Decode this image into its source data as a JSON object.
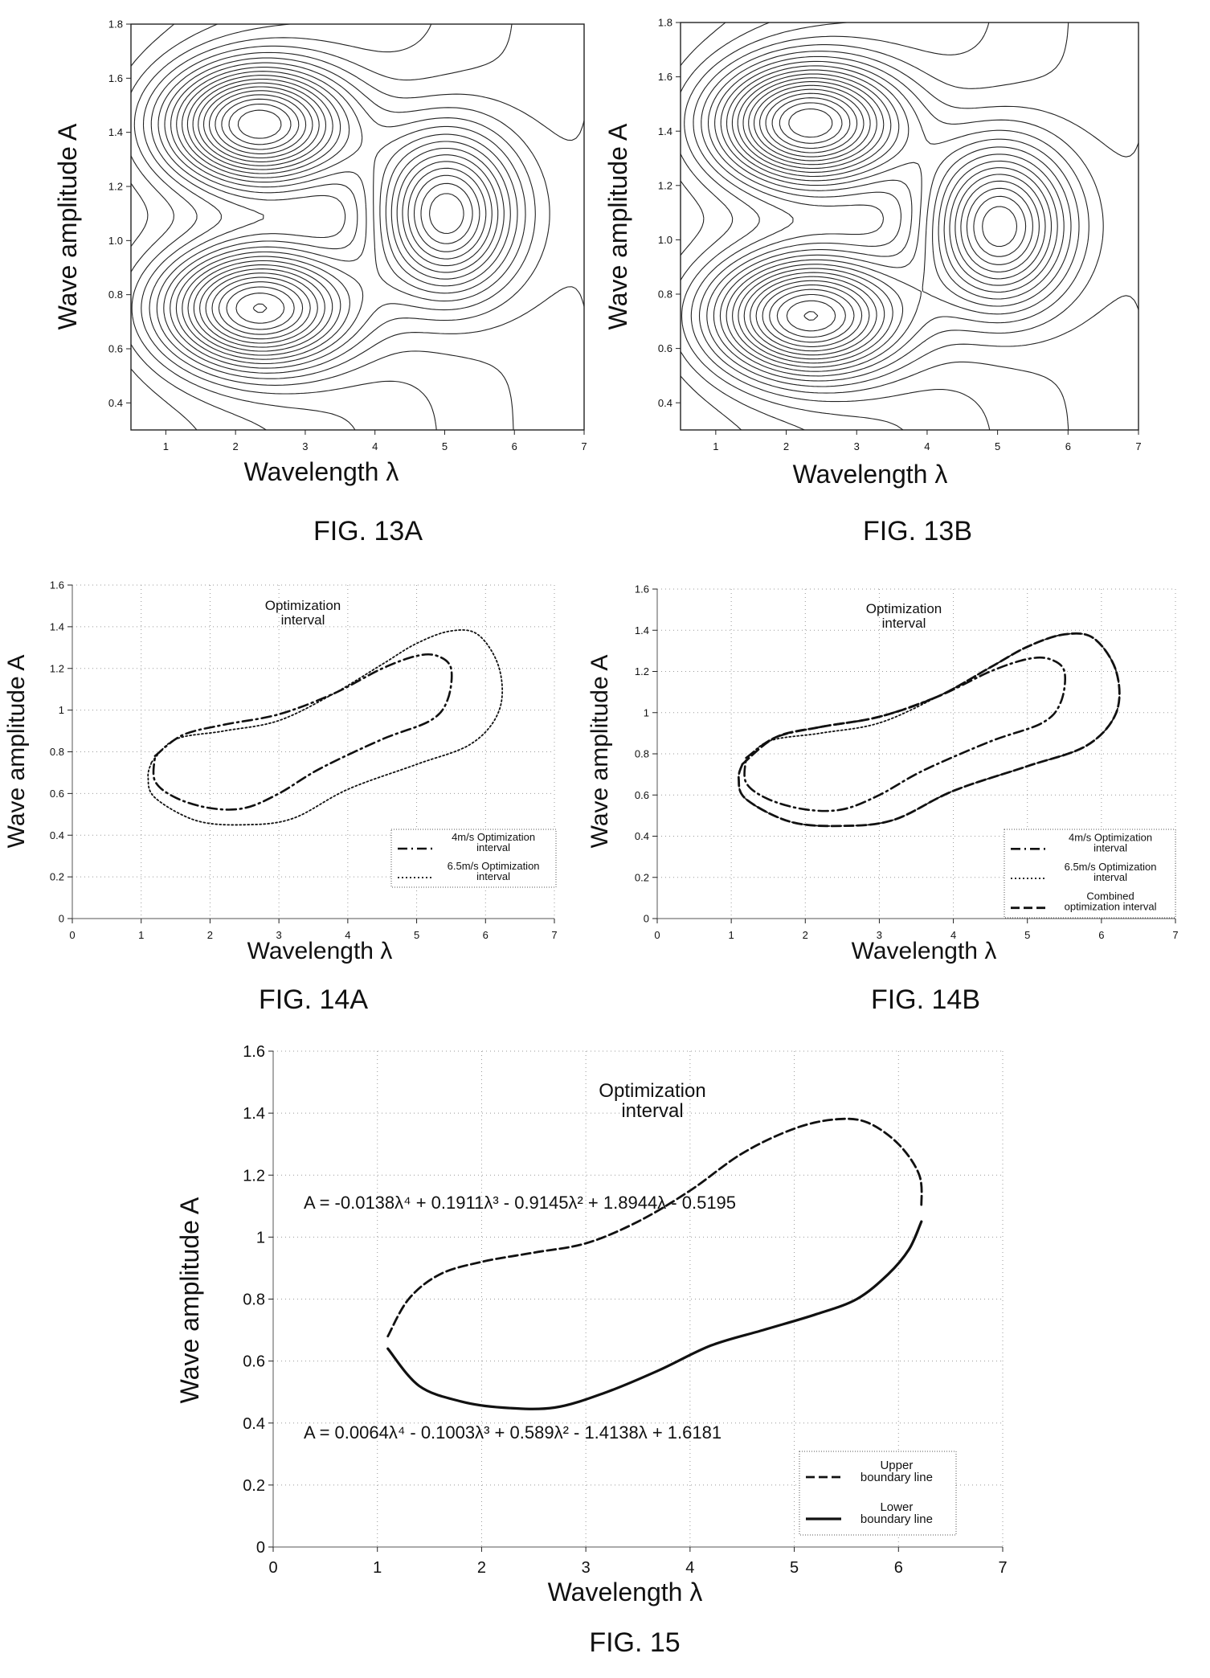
{
  "figures": [
    {
      "id": "13A",
      "caption": "FIG. 13A"
    },
    {
      "id": "13B",
      "caption": "FIG. 13B"
    },
    {
      "id": "14A",
      "caption": "FIG. 14A"
    },
    {
      "id": "14B",
      "caption": "FIG. 14B"
    },
    {
      "id": "15",
      "caption": "FIG. 15"
    }
  ],
  "chart_data": [
    {
      "id": "13A",
      "type": "contour",
      "xlabel": "Wavelength λ",
      "ylabel": "Wave amplitude A",
      "xlim": [
        0.5,
        7
      ],
      "ylim": [
        0.3,
        1.8
      ],
      "xticks": [
        1,
        2,
        3,
        4,
        5,
        6,
        7
      ],
      "yticks": [
        0.4,
        0.6,
        0.8,
        1.0,
        1.2,
        1.4,
        1.6,
        1.8
      ],
      "ytick_labels": [
        "0.4",
        "0.6",
        "0.8",
        "1.0",
        "1.2",
        "1.4",
        "1.6",
        "1.8"
      ],
      "contour_levels": 12,
      "peaks": [
        {
          "x": 2.3,
          "y": 1.43
        },
        {
          "x": 2.3,
          "y": 0.75
        },
        {
          "x": 5.0,
          "y": 1.1
        }
      ]
    },
    {
      "id": "13B",
      "type": "contour",
      "xlabel": "Wavelength λ",
      "ylabel": "Wave amplitude A",
      "xlim": [
        0.5,
        7
      ],
      "ylim": [
        0.3,
        1.8
      ],
      "xticks": [
        1,
        2,
        3,
        4,
        5,
        6,
        7
      ],
      "yticks": [
        0.4,
        0.6,
        0.8,
        1.0,
        1.2,
        1.4,
        1.6,
        1.8
      ],
      "ytick_labels": [
        "0.4",
        "0.6",
        "0.8",
        "1.0",
        "1.2",
        "1.4",
        "1.6",
        "1.8"
      ],
      "contour_levels": 12,
      "peaks": [
        {
          "x": 2.3,
          "y": 1.43
        },
        {
          "x": 2.3,
          "y": 0.72
        },
        {
          "x": 5.0,
          "y": 1.05
        }
      ]
    },
    {
      "id": "14A",
      "type": "line",
      "xlabel": "Wavelength λ",
      "ylabel": "Wave amplitude A",
      "xlim": [
        0,
        7
      ],
      "ylim": [
        0,
        1.6
      ],
      "xticks": [
        0,
        1,
        2,
        3,
        4,
        5,
        6,
        7
      ],
      "yticks": [
        0,
        0.2,
        0.4,
        0.6,
        0.8,
        1,
        1.2,
        1.4,
        1.6
      ],
      "ytick_labels": [
        "0",
        "0.2",
        "0.4",
        "0.6",
        "0.8",
        "1",
        "1.2",
        "1.4",
        "1.6"
      ],
      "annotation": [
        "Optimization",
        "interval"
      ],
      "grid": true,
      "legend": "bottom-right",
      "series": [
        {
          "name": "4m/s Optimization interval",
          "legend_lines": [
            "4m/s Optimization",
            "interval"
          ],
          "style": "dashdot",
          "points": [
            [
              1.2,
              0.78
            ],
            [
              1.6,
              0.88
            ],
            [
              2.2,
              0.93
            ],
            [
              3.0,
              0.98
            ],
            [
              3.8,
              1.08
            ],
            [
              4.5,
              1.2
            ],
            [
              5.0,
              1.26
            ],
            [
              5.3,
              1.26
            ],
            [
              5.5,
              1.2
            ],
            [
              5.45,
              1.05
            ],
            [
              5.2,
              0.95
            ],
            [
              4.5,
              0.86
            ],
            [
              3.6,
              0.72
            ],
            [
              3.0,
              0.6
            ],
            [
              2.5,
              0.53
            ],
            [
              2.0,
              0.53
            ],
            [
              1.5,
              0.58
            ],
            [
              1.2,
              0.66
            ],
            [
              1.2,
              0.78
            ]
          ]
        },
        {
          "name": "6.5m/s Optimization interval",
          "legend_lines": [
            "6.5m/s Optimization",
            "interval"
          ],
          "style": "dotted",
          "points": [
            [
              1.15,
              0.75
            ],
            [
              1.5,
              0.86
            ],
            [
              2.2,
              0.9
            ],
            [
              3.0,
              0.95
            ],
            [
              3.8,
              1.08
            ],
            [
              4.5,
              1.22
            ],
            [
              5.0,
              1.32
            ],
            [
              5.5,
              1.38
            ],
            [
              5.9,
              1.36
            ],
            [
              6.2,
              1.2
            ],
            [
              6.2,
              1.0
            ],
            [
              5.8,
              0.84
            ],
            [
              5.0,
              0.74
            ],
            [
              4.0,
              0.62
            ],
            [
              3.2,
              0.48
            ],
            [
              2.5,
              0.45
            ],
            [
              1.8,
              0.47
            ],
            [
              1.2,
              0.58
            ],
            [
              1.1,
              0.68
            ],
            [
              1.15,
              0.75
            ]
          ]
        }
      ]
    },
    {
      "id": "14B",
      "type": "line",
      "xlabel": "Wavelength λ",
      "ylabel": "Wave amplitude A",
      "xlim": [
        0,
        7
      ],
      "ylim": [
        0,
        1.6
      ],
      "xticks": [
        0,
        1,
        2,
        3,
        4,
        5,
        6,
        7
      ],
      "yticks": [
        0,
        0.2,
        0.4,
        0.6,
        0.8,
        1,
        1.2,
        1.4,
        1.6
      ],
      "ytick_labels": [
        "0",
        "0.2",
        "0.4",
        "0.6",
        "0.8",
        "1",
        "1.2",
        "1.4",
        "1.6"
      ],
      "annotation": [
        "Optimization",
        "interval"
      ],
      "grid": true,
      "legend": "bottom-right",
      "series": [
        {
          "name": "4m/s Optimization interval",
          "legend_lines": [
            "4m/s Optimization",
            "interval"
          ],
          "style": "dashdot",
          "points": [
            [
              1.2,
              0.78
            ],
            [
              1.6,
              0.88
            ],
            [
              2.2,
              0.93
            ],
            [
              3.0,
              0.98
            ],
            [
              3.8,
              1.08
            ],
            [
              4.5,
              1.2
            ],
            [
              5.0,
              1.26
            ],
            [
              5.3,
              1.26
            ],
            [
              5.5,
              1.2
            ],
            [
              5.45,
              1.05
            ],
            [
              5.2,
              0.95
            ],
            [
              4.5,
              0.86
            ],
            [
              3.6,
              0.72
            ],
            [
              3.0,
              0.6
            ],
            [
              2.5,
              0.53
            ],
            [
              2.0,
              0.53
            ],
            [
              1.5,
              0.58
            ],
            [
              1.2,
              0.66
            ],
            [
              1.2,
              0.78
            ]
          ]
        },
        {
          "name": "6.5m/s Optimization interval",
          "legend_lines": [
            "6.5m/s Optimization",
            "interval"
          ],
          "style": "dotted",
          "points": [
            [
              1.15,
              0.75
            ],
            [
              1.5,
              0.86
            ],
            [
              2.2,
              0.9
            ],
            [
              3.0,
              0.95
            ],
            [
              3.8,
              1.08
            ],
            [
              4.5,
              1.22
            ],
            [
              5.0,
              1.32
            ],
            [
              5.5,
              1.38
            ],
            [
              5.9,
              1.36
            ],
            [
              6.2,
              1.2
            ],
            [
              6.2,
              1.0
            ],
            [
              5.8,
              0.84
            ],
            [
              5.0,
              0.74
            ],
            [
              4.0,
              0.62
            ],
            [
              3.2,
              0.48
            ],
            [
              2.5,
              0.45
            ],
            [
              1.8,
              0.47
            ],
            [
              1.2,
              0.58
            ],
            [
              1.1,
              0.68
            ],
            [
              1.15,
              0.75
            ]
          ]
        },
        {
          "name": "Combined optimization interval",
          "legend_lines": [
            "Combined",
            "optimization interval"
          ],
          "style": "dashed",
          "points": [
            [
              1.15,
              0.75
            ],
            [
              1.6,
              0.88
            ],
            [
              2.2,
              0.93
            ],
            [
              3.0,
              0.98
            ],
            [
              3.8,
              1.08
            ],
            [
              4.5,
              1.22
            ],
            [
              5.0,
              1.32
            ],
            [
              5.5,
              1.38
            ],
            [
              5.9,
              1.36
            ],
            [
              6.2,
              1.2
            ],
            [
              6.2,
              1.0
            ],
            [
              5.8,
              0.84
            ],
            [
              5.0,
              0.74
            ],
            [
              4.0,
              0.62
            ],
            [
              3.2,
              0.48
            ],
            [
              2.5,
              0.45
            ],
            [
              1.8,
              0.47
            ],
            [
              1.2,
              0.58
            ],
            [
              1.1,
              0.68
            ],
            [
              1.15,
              0.75
            ]
          ]
        }
      ]
    },
    {
      "id": "15",
      "type": "line",
      "xlabel": "Wavelength λ",
      "ylabel": "Wave amplitude A",
      "xlim": [
        0,
        7
      ],
      "ylim": [
        0,
        1.6
      ],
      "xticks": [
        0,
        1,
        2,
        3,
        4,
        5,
        6,
        7
      ],
      "yticks": [
        0,
        0.2,
        0.4,
        0.6,
        0.8,
        1,
        1.2,
        1.4,
        1.6
      ],
      "ytick_labels": [
        "0",
        "0.2",
        "0.4",
        "0.6",
        "0.8",
        "1",
        "1.2",
        "1.4",
        "1.6"
      ],
      "annotation": [
        "Optimization",
        "interval"
      ],
      "grid": true,
      "legend": "bottom-right",
      "equations": [
        "A = -0.0138λ⁴ + 0.1911λ³ - 0.9145λ² + 1.8944λ - 0.5195",
        "A = 0.0064λ⁴ - 0.1003λ³ + 0.589λ² - 1.4138λ + 1.6181"
      ],
      "series": [
        {
          "name": "Upper boundary line",
          "legend_lines": [
            "Upper",
            "boundary line"
          ],
          "style": "dashed",
          "points": [
            [
              1.1,
              0.68
            ],
            [
              1.3,
              0.8
            ],
            [
              1.6,
              0.88
            ],
            [
              2.0,
              0.92
            ],
            [
              2.5,
              0.95
            ],
            [
              3.0,
              0.98
            ],
            [
              3.5,
              1.05
            ],
            [
              4.0,
              1.15
            ],
            [
              4.5,
              1.27
            ],
            [
              5.0,
              1.35
            ],
            [
              5.4,
              1.38
            ],
            [
              5.7,
              1.37
            ],
            [
              6.0,
              1.3
            ],
            [
              6.2,
              1.2
            ],
            [
              6.22,
              1.1
            ]
          ]
        },
        {
          "name": "Lower boundary line",
          "legend_lines": [
            "Lower",
            "boundary line"
          ],
          "style": "solid",
          "points": [
            [
              1.1,
              0.64
            ],
            [
              1.4,
              0.52
            ],
            [
              1.8,
              0.47
            ],
            [
              2.2,
              0.45
            ],
            [
              2.7,
              0.45
            ],
            [
              3.2,
              0.5
            ],
            [
              3.7,
              0.57
            ],
            [
              4.2,
              0.65
            ],
            [
              4.7,
              0.7
            ],
            [
              5.2,
              0.75
            ],
            [
              5.6,
              0.8
            ],
            [
              5.9,
              0.88
            ],
            [
              6.1,
              0.96
            ],
            [
              6.22,
              1.05
            ]
          ]
        }
      ]
    }
  ]
}
